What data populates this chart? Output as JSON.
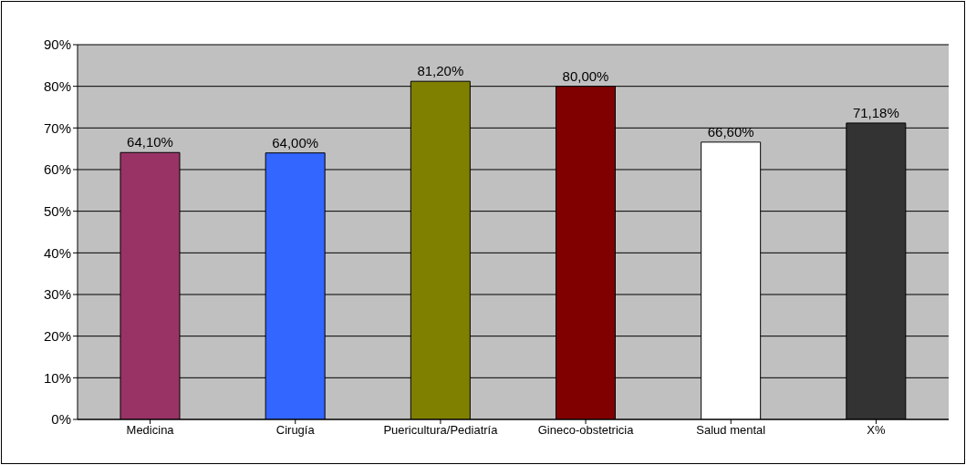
{
  "chart_data": {
    "type": "bar",
    "categories": [
      "Medicina",
      "Cirugía",
      "Puericultura/Pediatría",
      "Gineco-obstetricia",
      "Salud mental",
      "X%"
    ],
    "values": [
      64.1,
      64.0,
      81.2,
      80.0,
      66.6,
      71.18
    ],
    "value_labels": [
      "64,10%",
      "64,00%",
      "81,20%",
      "80,00%",
      "66,60%",
      "71,18%"
    ],
    "colors": [
      "#993366",
      "#3366ff",
      "#808000",
      "#800000",
      "#ffffff",
      "#333333"
    ],
    "ylim": [
      0,
      90
    ],
    "yticks": [
      {
        "value": 0,
        "label": "0%"
      },
      {
        "value": 10,
        "label": "10%"
      },
      {
        "value": 20,
        "label": "20%"
      },
      {
        "value": 30,
        "label": "30%"
      },
      {
        "value": 40,
        "label": "40%"
      },
      {
        "value": 50,
        "label": "50%"
      },
      {
        "value": 60,
        "label": "60%"
      },
      {
        "value": 70,
        "label": "70%"
      },
      {
        "value": 80,
        "label": "80%"
      },
      {
        "value": 90,
        "label": "90%"
      }
    ],
    "grid": "y"
  }
}
